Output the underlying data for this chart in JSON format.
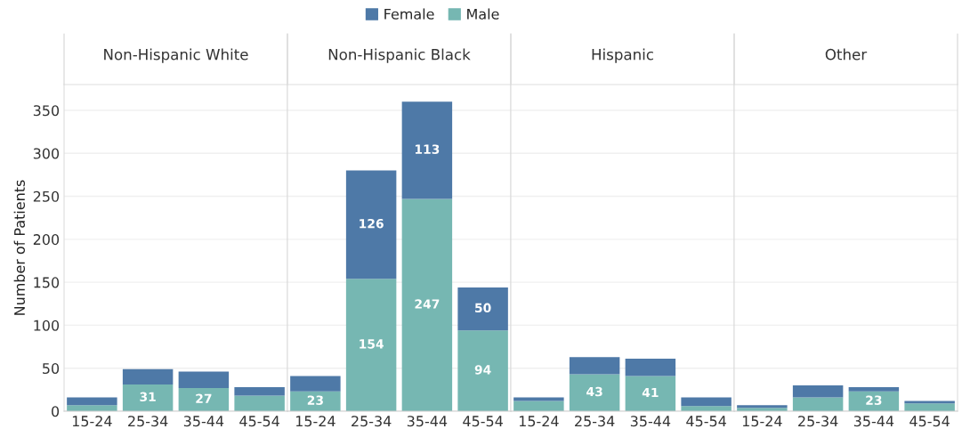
{
  "chart_data": [
    {
      "type": "bar",
      "title": "Non-Hispanic White",
      "ylabel": "Number of Patients",
      "categories": [
        "15-24",
        "25-34",
        "35-44",
        "45-54"
      ],
      "stacked": true,
      "ylim": [
        0,
        380
      ],
      "yticks": [
        0,
        50,
        100,
        150,
        200,
        250,
        300,
        350
      ],
      "grid": "y",
      "legend": "top",
      "tick_labels": "xy",
      "series": [
        {
          "name": "Male",
          "color": "#76b7b2",
          "values": [
            7,
            31,
            27,
            18
          ],
          "value_labels": [
            null,
            "31",
            "27",
            null
          ]
        },
        {
          "name": "Female",
          "color": "#4e79a7",
          "values": [
            9,
            18,
            19,
            10
          ],
          "value_labels": [
            null,
            null,
            null,
            null
          ]
        }
      ]
    },
    {
      "type": "bar",
      "title": "Non-Hispanic Black",
      "categories": [
        "15-24",
        "25-34",
        "35-44",
        "45-54"
      ],
      "stacked": true,
      "ylim": [
        0,
        380
      ],
      "yticks": [
        0,
        50,
        100,
        150,
        200,
        250,
        300,
        350
      ],
      "grid": "y",
      "tick_labels": "x",
      "series": [
        {
          "color": "#76b7b2",
          "values": [
            23,
            154,
            247,
            94
          ],
          "value_labels": [
            "23",
            "154",
            "247",
            "94"
          ]
        },
        {
          "color": "#4e79a7",
          "values": [
            18,
            126,
            113,
            50
          ],
          "value_labels": [
            null,
            "126",
            "113",
            "50"
          ]
        }
      ]
    },
    {
      "type": "bar",
      "title": "Hispanic",
      "categories": [
        "15-24",
        "25-34",
        "35-44",
        "45-54"
      ],
      "stacked": true,
      "ylim": [
        0,
        380
      ],
      "yticks": [
        0,
        50,
        100,
        150,
        200,
        250,
        300,
        350
      ],
      "grid": "y",
      "tick_labels": "x",
      "series": [
        {
          "color": "#76b7b2",
          "values": [
            12,
            43,
            41,
            6
          ],
          "value_labels": [
            null,
            "43",
            "41",
            null
          ]
        },
        {
          "color": "#4e79a7",
          "values": [
            4,
            20,
            20,
            10
          ],
          "value_labels": [
            null,
            null,
            null,
            null
          ]
        }
      ]
    },
    {
      "type": "bar",
      "title": "Other",
      "categories": [
        "15-24",
        "25-34",
        "35-44",
        "45-54"
      ],
      "stacked": true,
      "ylim": [
        0,
        380
      ],
      "yticks": [
        0,
        50,
        100,
        150,
        200,
        250,
        300,
        350
      ],
      "grid": "y",
      "tick_labels": "x",
      "series": [
        {
          "color": "#76b7b2",
          "values": [
            4,
            16,
            23,
            9
          ],
          "value_labels": [
            null,
            null,
            "23",
            null
          ]
        },
        {
          "color": "#4e79a7",
          "values": [
            3,
            14,
            5,
            3
          ],
          "value_labels": [
            null,
            null,
            null,
            null
          ]
        }
      ]
    }
  ]
}
